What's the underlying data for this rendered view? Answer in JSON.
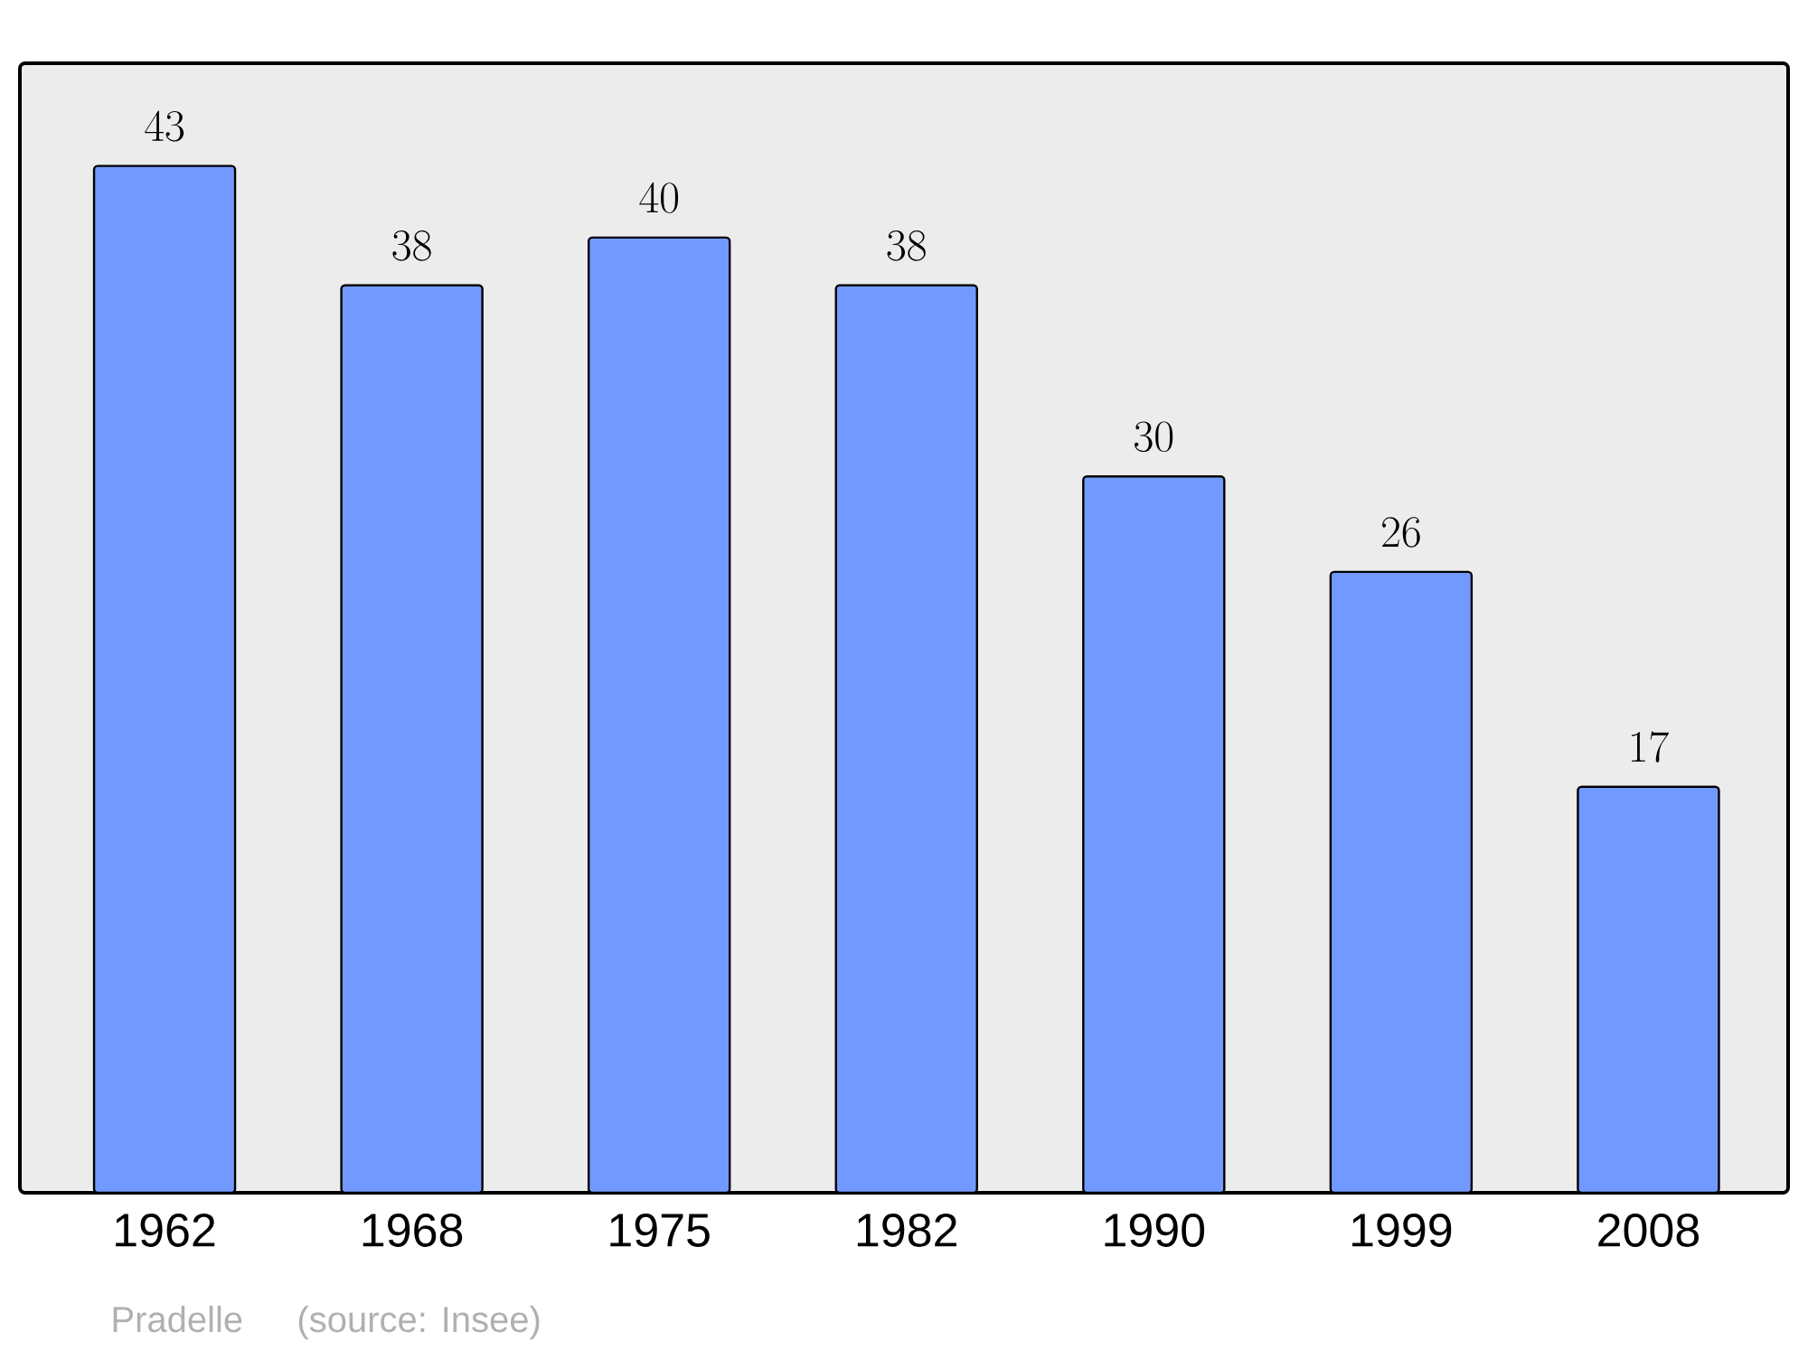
{
  "chart_data": {
    "type": "bar",
    "categories": [
      "1962",
      "1968",
      "1975",
      "1982",
      "1990",
      "1999",
      "2008"
    ],
    "values": [
      43,
      38,
      40,
      38,
      30,
      26,
      17
    ],
    "color": "#7299ff",
    "ylim": [
      0,
      47.3
    ],
    "data_labels": true,
    "annotations": [
      "Pradelle",
      "(source: Insee)"
    ]
  }
}
